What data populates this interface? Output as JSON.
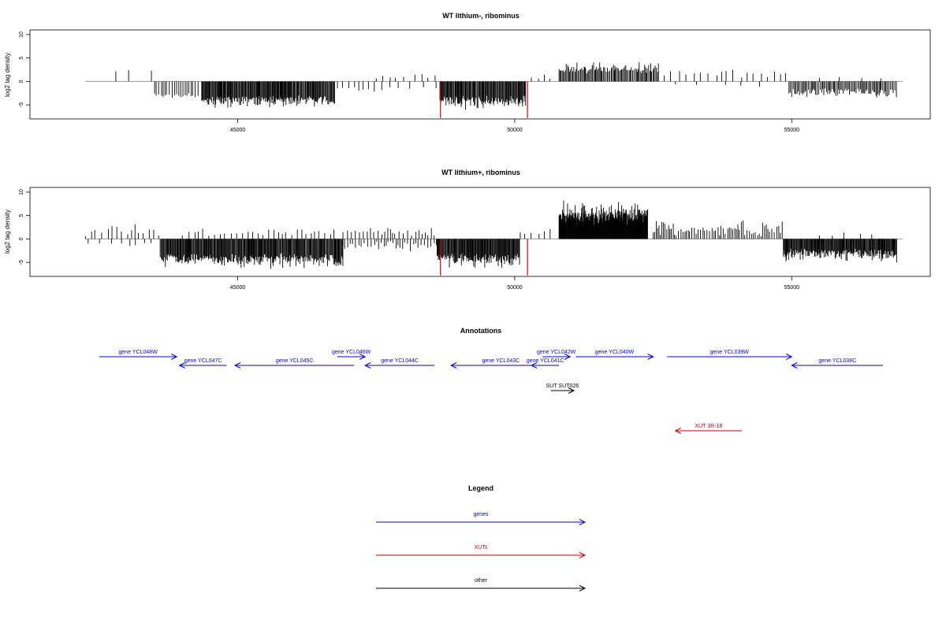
{
  "chart_data": [
    {
      "type": "bar",
      "panel": "track-1",
      "title": "WT lithium-, ribominus",
      "ylabel": "log2 tag density",
      "xlabel": "",
      "xlim": [
        41250,
        57500
      ],
      "ylim": [
        -8,
        11
      ],
      "x_ticks": [
        45000,
        50000,
        55000
      ],
      "x_tick_labels": [
        "45000",
        "50000",
        "55000"
      ],
      "y_ticks": [
        -5,
        0,
        5,
        10
      ],
      "y_tick_labels": [
        "-5",
        "0",
        "5",
        "10"
      ],
      "grid": false,
      "baseline_range": [
        42250,
        57000
      ],
      "bar_color": "#000000",
      "highlight_color": "#cc0000",
      "segments": [
        {
          "x_start": 42800,
          "x_end": 43500,
          "step": 350,
          "amp": [
            2,
            3
          ],
          "sign": 1,
          "seed": 11
        },
        {
          "x_start": 43500,
          "x_end": 44300,
          "step": 40,
          "amp": [
            2.5,
            4
          ],
          "sign": -1,
          "seed": 12
        },
        {
          "x_start": 44350,
          "x_end": 46750,
          "step": 14,
          "amp": [
            3,
            6
          ],
          "sign": -1,
          "seed": 13
        },
        {
          "x_start": 46800,
          "x_end": 47500,
          "step": 120,
          "amp": [
            1,
            3
          ],
          "sign": -1,
          "seed": 14
        },
        {
          "x_start": 47500,
          "x_end": 48600,
          "step": 150,
          "amp": [
            0.5,
            1.8
          ],
          "sign": 1,
          "seed": 15
        },
        {
          "x_start": 47600,
          "x_end": 48600,
          "step": 180,
          "amp": [
            1,
            3
          ],
          "sign": -1,
          "seed": 16
        },
        {
          "x_start": 48650,
          "x_end": 50200,
          "step": 14,
          "amp": [
            3,
            6.5
          ],
          "sign": -1,
          "seed": 17
        },
        {
          "x_start": 50300,
          "x_end": 50800,
          "step": 150,
          "amp": [
            0.5,
            2
          ],
          "sign": 1,
          "seed": 18
        },
        {
          "x_start": 50800,
          "x_end": 52600,
          "step": 20,
          "amp": [
            1.5,
            5
          ],
          "sign": 1,
          "seed": 19
        },
        {
          "x_start": 52700,
          "x_end": 54900,
          "step": 120,
          "amp": [
            0.8,
            3
          ],
          "sign": 1,
          "seed": 20
        },
        {
          "x_start": 52900,
          "x_end": 54500,
          "step": 400,
          "amp": [
            0.5,
            1.5
          ],
          "sign": -1,
          "seed": 21
        },
        {
          "x_start": 54950,
          "x_end": 56900,
          "step": 22,
          "amp": [
            1.5,
            4.2
          ],
          "sign": -1,
          "seed": 22
        },
        {
          "x_start": 55500,
          "x_end": 56800,
          "step": 350,
          "amp": [
            0.5,
            1.5
          ],
          "sign": 1,
          "seed": 23
        }
      ],
      "highlights": [
        {
          "x": 48660,
          "y": -7.8
        },
        {
          "x": 50230,
          "y": -7.8
        }
      ]
    },
    {
      "type": "bar",
      "panel": "track-2",
      "title": "WT lithium+, ribominus",
      "ylabel": "log2 tag density",
      "xlabel": "",
      "xlim": [
        41250,
        57500
      ],
      "ylim": [
        -8,
        11
      ],
      "x_ticks": [
        45000,
        50000,
        55000
      ],
      "x_tick_labels": [
        "45000",
        "50000",
        "55000"
      ],
      "y_ticks": [
        -5,
        0,
        5,
        10
      ],
      "y_tick_labels": [
        "-5",
        "0",
        "5",
        "10"
      ],
      "grid": false,
      "baseline_range": [
        42250,
        57000
      ],
      "bar_color": "#000000",
      "highlight_color": "#cc0000",
      "segments": [
        {
          "x_start": 42250,
          "x_end": 43600,
          "step": 90,
          "amp": [
            0.5,
            4
          ],
          "sign": 1,
          "seed": 31
        },
        {
          "x_start": 42300,
          "x_end": 43500,
          "step": 160,
          "amp": [
            0.5,
            2
          ],
          "sign": -1,
          "seed": 32
        },
        {
          "x_start": 43600,
          "x_end": 46900,
          "step": 13,
          "amp": [
            3,
            7
          ],
          "sign": -1,
          "seed": 33
        },
        {
          "x_start": 44000,
          "x_end": 46800,
          "step": 90,
          "amp": [
            0.5,
            3
          ],
          "sign": 1,
          "seed": 34
        },
        {
          "x_start": 46900,
          "x_end": 48600,
          "step": 60,
          "amp": [
            0.5,
            3
          ],
          "sign": 1,
          "seed": 35
        },
        {
          "x_start": 46900,
          "x_end": 48600,
          "step": 50,
          "amp": [
            0.5,
            4
          ],
          "sign": -1,
          "seed": 36
        },
        {
          "x_start": 48600,
          "x_end": 50100,
          "step": 12,
          "amp": [
            3,
            7
          ],
          "sign": -1,
          "seed": 37
        },
        {
          "x_start": 50100,
          "x_end": 50750,
          "step": 120,
          "amp": [
            0.5,
            2.5
          ],
          "sign": 1,
          "seed": 38
        },
        {
          "x_start": 50800,
          "x_end": 52400,
          "step": 7,
          "amp": [
            3,
            9
          ],
          "sign": 1,
          "seed": 39
        },
        {
          "x_start": 52500,
          "x_end": 54850,
          "step": 35,
          "amp": [
            0.5,
            4.5
          ],
          "sign": 1,
          "seed": 40
        },
        {
          "x_start": 54850,
          "x_end": 56900,
          "step": 12,
          "amp": [
            2,
            5.5
          ],
          "sign": -1,
          "seed": 41
        },
        {
          "x_start": 55500,
          "x_end": 56800,
          "step": 300,
          "amp": [
            0.5,
            1.5
          ],
          "sign": 1,
          "seed": 42
        }
      ],
      "highlights": [
        {
          "x": 48660,
          "y": -7.8
        },
        {
          "x": 50230,
          "y": -7.8
        }
      ]
    }
  ],
  "annotations": {
    "title": "Annotations",
    "genes": [
      {
        "label": "gene YCL048W",
        "x_start": 42500,
        "x_end": 43900,
        "row": 0,
        "direction": "right",
        "type": "genes"
      },
      {
        "label": "gene YCL047C",
        "x_start": 43950,
        "x_end": 44800,
        "row": 1,
        "direction": "left",
        "type": "genes"
      },
      {
        "label": "gene YCL046W",
        "x_start": 46800,
        "x_end": 47300,
        "row": 0,
        "direction": "right",
        "type": "genes"
      },
      {
        "label": "gene YCL045C",
        "x_start": 44950,
        "x_end": 47100,
        "row": 1,
        "direction": "left",
        "type": "genes"
      },
      {
        "label": "gene YCL044C",
        "x_start": 47300,
        "x_end": 48550,
        "row": 1,
        "direction": "left",
        "type": "genes"
      },
      {
        "label": "gene YCL043C",
        "x_start": 48850,
        "x_end": 50650,
        "row": 1,
        "direction": "left",
        "type": "genes"
      },
      {
        "label": "gene YCL042W",
        "x_start": 50500,
        "x_end": 51000,
        "row": 0,
        "direction": "right",
        "type": "genes"
      },
      {
        "label": "gene YCL041C",
        "x_start": 50300,
        "x_end": 50800,
        "row": 1,
        "direction": "left",
        "type": "genes"
      },
      {
        "label": "gene YCL040W",
        "x_start": 51100,
        "x_end": 52500,
        "row": 0,
        "direction": "right",
        "type": "genes"
      },
      {
        "label": "gene YCL039W",
        "x_start": 52750,
        "x_end": 55000,
        "row": 0,
        "direction": "right",
        "type": "genes"
      },
      {
        "label": "gene YCL038C",
        "x_start": 55000,
        "x_end": 56650,
        "row": 1,
        "direction": "left",
        "type": "genes"
      },
      {
        "label": "SUT SUT026",
        "x_start": 50650,
        "x_end": 51070,
        "row": 2,
        "direction": "right",
        "type": "other"
      },
      {
        "label": "XUT 3R-18",
        "x_start": 52900,
        "x_end": 54100,
        "row": 3,
        "direction": "left",
        "type": "XUTs"
      }
    ]
  },
  "legend": {
    "title": "Legend",
    "items": [
      {
        "label": "genes",
        "color": "#0000ff"
      },
      {
        "label": "XUTs",
        "color": "#cc0000"
      },
      {
        "label": "other",
        "color": "#000000"
      }
    ]
  }
}
